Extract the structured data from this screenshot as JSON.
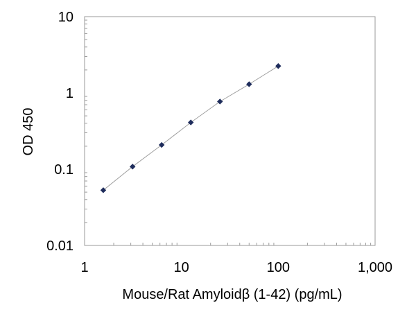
{
  "chart_data": {
    "type": "scatter",
    "xlabel": "Mouse/Rat Amyloidβ (1-42) (pg/mL)",
    "ylabel": "OD 450",
    "x_scale": "log",
    "y_scale": "log",
    "xlim": [
      1,
      1000
    ],
    "ylim": [
      0.01,
      10
    ],
    "x_ticks": [
      "1",
      "10",
      "100",
      "1,000"
    ],
    "y_ticks": [
      "0.01",
      "0.1",
      "1",
      "10"
    ],
    "grid": false,
    "legend": "none",
    "marker_color": "#1f2d5c",
    "fit_line_color": "#a0a0a0",
    "trendline": true,
    "series": [
      {
        "x": [
          1.56,
          3.13,
          6.25,
          12.5,
          25,
          50,
          100
        ],
        "y": [
          0.053,
          0.108,
          0.208,
          0.41,
          0.77,
          1.3,
          2.25
        ]
      }
    ]
  }
}
